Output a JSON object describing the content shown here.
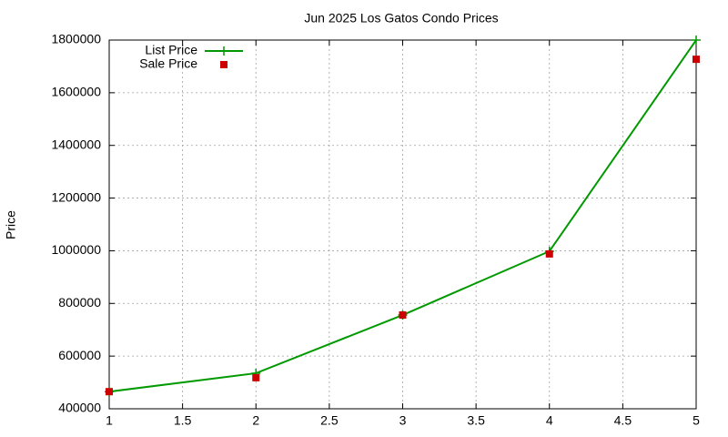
{
  "chart_data": {
    "type": "line",
    "title": "Jun 2025 Los Gatos Condo Prices",
    "y_label": "Price",
    "x": [
      1,
      2,
      3,
      4,
      5
    ],
    "series": [
      {
        "name": "List Price",
        "color": "#009900",
        "marker": "plus",
        "line": true,
        "values": [
          465000,
          535000,
          756000,
          998000,
          1800000
        ]
      },
      {
        "name": "Sale Price",
        "color": "#cc0000",
        "marker": "square",
        "line": false,
        "values": [
          465000,
          518000,
          756000,
          988000,
          1727000
        ]
      }
    ],
    "xlim": [
      1,
      5
    ],
    "xticks": [
      1,
      1.5,
      2,
      2.5,
      3,
      3.5,
      4,
      4.5,
      5
    ],
    "ylim": [
      400000,
      1800000
    ],
    "yticks": [
      400000,
      600000,
      800000,
      1000000,
      1200000,
      1400000,
      1600000,
      1800000
    ],
    "grid": true,
    "legend": "top-left"
  }
}
